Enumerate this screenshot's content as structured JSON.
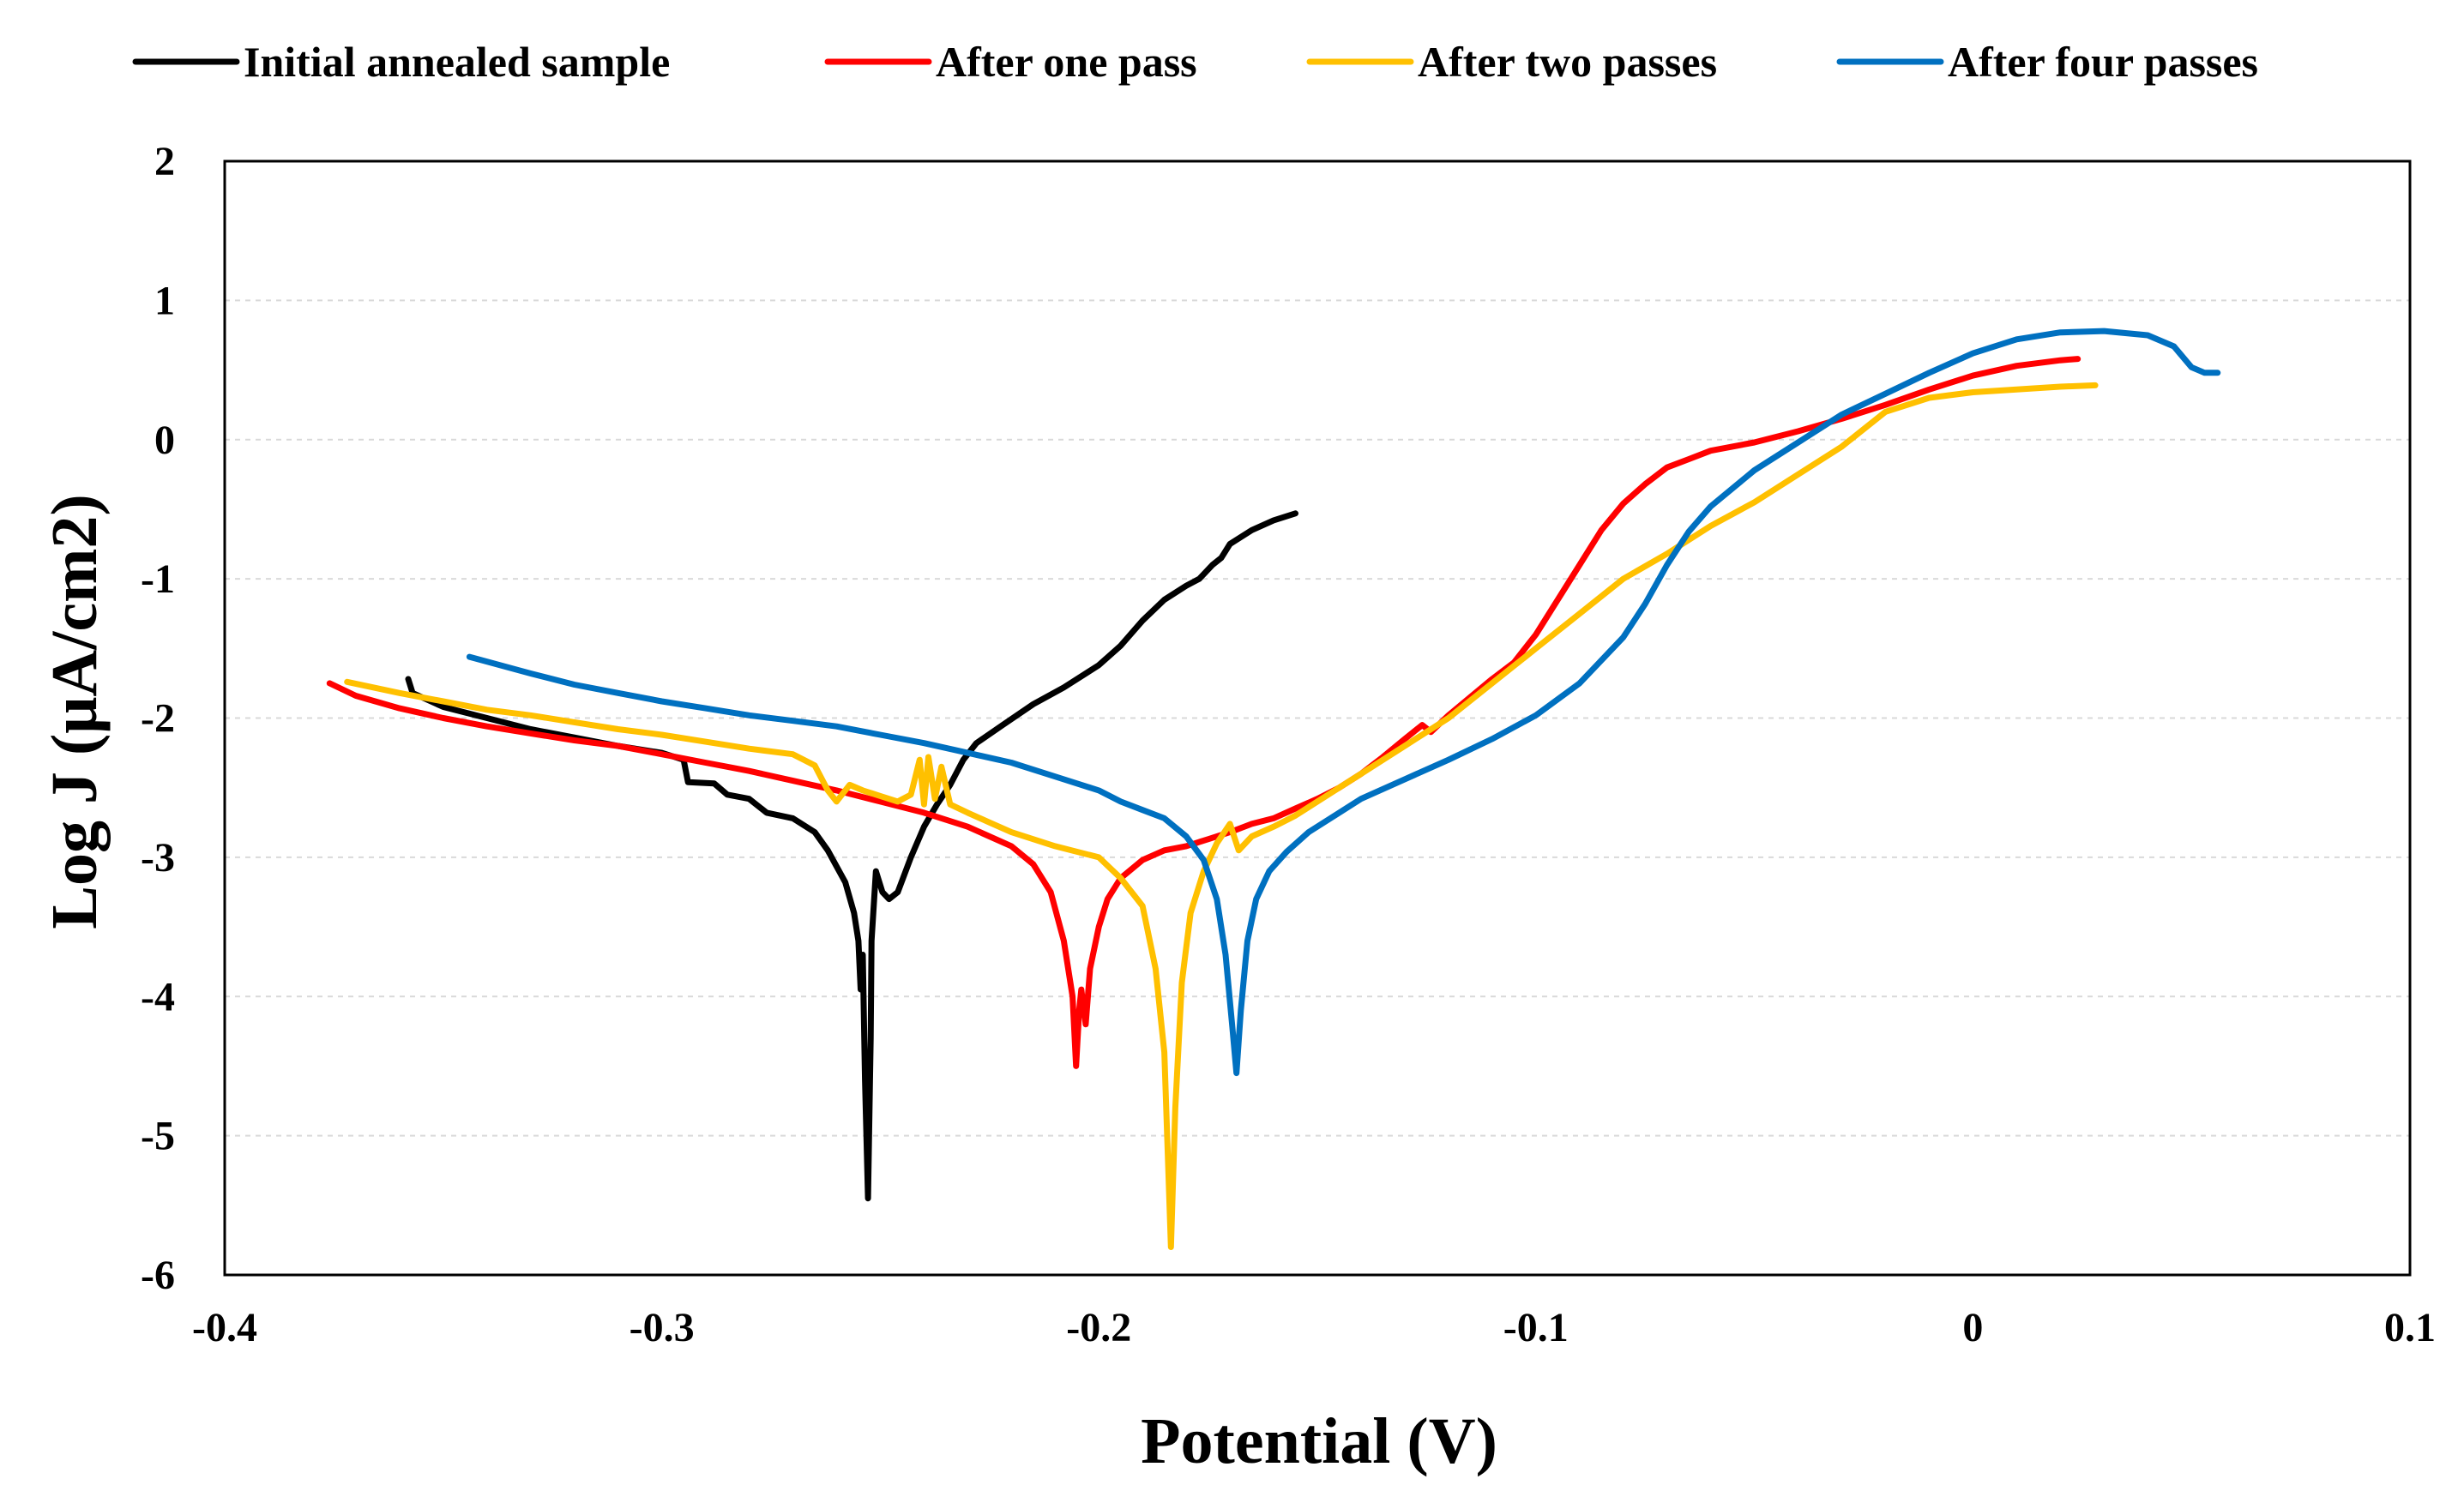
{
  "chart_data": {
    "type": "line",
    "title": "",
    "xlabel": "Potential (V)",
    "ylabel": "Log J (μA/cm2)",
    "xlim": [
      -0.4,
      0.1
    ],
    "ylim": [
      -6,
      2
    ],
    "xticks": [
      {
        "value": -0.4,
        "label": "-0.4"
      },
      {
        "value": -0.3,
        "label": "-0.3"
      },
      {
        "value": -0.2,
        "label": "-0.2"
      },
      {
        "value": -0.1,
        "label": "-0.1"
      },
      {
        "value": 0,
        "label": "0"
      },
      {
        "value": 0.1,
        "label": "0.1"
      }
    ],
    "yticks": [
      {
        "value": 2,
        "label": "2"
      },
      {
        "value": 1,
        "label": "1"
      },
      {
        "value": 0,
        "label": "0"
      },
      {
        "value": -1,
        "label": "-1"
      },
      {
        "value": -2,
        "label": "-2"
      },
      {
        "value": -3,
        "label": "-3"
      },
      {
        "value": -4,
        "label": "-4"
      },
      {
        "value": -5,
        "label": "-5"
      },
      {
        "value": -6,
        "label": "-6"
      }
    ],
    "grid": true,
    "legend_position": "top",
    "series": [
      {
        "name": "Initial annealed sample",
        "color": "#000000",
        "points": [
          [
            -0.358,
            -1.72
          ],
          [
            -0.357,
            -1.82
          ],
          [
            -0.35,
            -1.92
          ],
          [
            -0.34,
            -2.0
          ],
          [
            -0.33,
            -2.08
          ],
          [
            -0.32,
            -2.14
          ],
          [
            -0.31,
            -2.2
          ],
          [
            -0.3,
            -2.25
          ],
          [
            -0.295,
            -2.3
          ],
          [
            -0.294,
            -2.46
          ],
          [
            -0.288,
            -2.47
          ],
          [
            -0.285,
            -2.55
          ],
          [
            -0.28,
            -2.58
          ],
          [
            -0.276,
            -2.68
          ],
          [
            -0.27,
            -2.72
          ],
          [
            -0.265,
            -2.82
          ],
          [
            -0.262,
            -2.95
          ],
          [
            -0.258,
            -3.18
          ],
          [
            -0.256,
            -3.4
          ],
          [
            -0.255,
            -3.6
          ],
          [
            -0.2545,
            -3.95
          ],
          [
            -0.254,
            -3.7
          ],
          [
            -0.2535,
            -4.6
          ],
          [
            -0.2528,
            -5.45
          ],
          [
            -0.2522,
            -4.3
          ],
          [
            -0.252,
            -3.6
          ],
          [
            -0.251,
            -3.1
          ],
          [
            -0.2495,
            -3.25
          ],
          [
            -0.248,
            -3.3
          ],
          [
            -0.246,
            -3.25
          ],
          [
            -0.243,
            -3.0
          ],
          [
            -0.24,
            -2.78
          ],
          [
            -0.237,
            -2.62
          ],
          [
            -0.234,
            -2.48
          ],
          [
            -0.231,
            -2.3
          ],
          [
            -0.228,
            -2.18
          ],
          [
            -0.222,
            -2.05
          ],
          [
            -0.215,
            -1.9
          ],
          [
            -0.208,
            -1.78
          ],
          [
            -0.2,
            -1.62
          ],
          [
            -0.195,
            -1.48
          ],
          [
            -0.19,
            -1.3
          ],
          [
            -0.185,
            -1.15
          ],
          [
            -0.18,
            -1.05
          ],
          [
            -0.177,
            -1.0
          ],
          [
            -0.174,
            -0.9
          ],
          [
            -0.172,
            -0.85
          ],
          [
            -0.17,
            -0.75
          ],
          [
            -0.165,
            -0.65
          ],
          [
            -0.16,
            -0.58
          ],
          [
            -0.155,
            -0.53
          ]
        ]
      },
      {
        "name": "After one pass",
        "color": "#ff0000",
        "points": [
          [
            -0.376,
            -1.75
          ],
          [
            -0.37,
            -1.84
          ],
          [
            -0.36,
            -1.93
          ],
          [
            -0.35,
            -2.0
          ],
          [
            -0.34,
            -2.06
          ],
          [
            -0.33,
            -2.11
          ],
          [
            -0.32,
            -2.16
          ],
          [
            -0.31,
            -2.2
          ],
          [
            -0.3,
            -2.26
          ],
          [
            -0.29,
            -2.32
          ],
          [
            -0.28,
            -2.38
          ],
          [
            -0.27,
            -2.45
          ],
          [
            -0.26,
            -2.52
          ],
          [
            -0.25,
            -2.6
          ],
          [
            -0.24,
            -2.68
          ],
          [
            -0.23,
            -2.78
          ],
          [
            -0.22,
            -2.92
          ],
          [
            -0.215,
            -3.05
          ],
          [
            -0.211,
            -3.25
          ],
          [
            -0.208,
            -3.6
          ],
          [
            -0.206,
            -4.0
          ],
          [
            -0.2052,
            -4.5
          ],
          [
            -0.2045,
            -4.1
          ],
          [
            -0.204,
            -3.95
          ],
          [
            -0.203,
            -4.2
          ],
          [
            -0.202,
            -3.8
          ],
          [
            -0.2,
            -3.5
          ],
          [
            -0.198,
            -3.3
          ],
          [
            -0.195,
            -3.15
          ],
          [
            -0.19,
            -3.02
          ],
          [
            -0.185,
            -2.95
          ],
          [
            -0.18,
            -2.92
          ],
          [
            -0.175,
            -2.87
          ],
          [
            -0.17,
            -2.82
          ],
          [
            -0.165,
            -2.76
          ],
          [
            -0.16,
            -2.72
          ],
          [
            -0.155,
            -2.65
          ],
          [
            -0.15,
            -2.58
          ],
          [
            -0.145,
            -2.5
          ],
          [
            -0.14,
            -2.4
          ],
          [
            -0.135,
            -2.28
          ],
          [
            -0.13,
            -2.15
          ],
          [
            -0.126,
            -2.05
          ],
          [
            -0.124,
            -2.1
          ],
          [
            -0.12,
            -1.98
          ],
          [
            -0.115,
            -1.85
          ],
          [
            -0.11,
            -1.72
          ],
          [
            -0.105,
            -1.6
          ],
          [
            -0.1,
            -1.4
          ],
          [
            -0.095,
            -1.15
          ],
          [
            -0.09,
            -0.9
          ],
          [
            -0.085,
            -0.65
          ],
          [
            -0.08,
            -0.46
          ],
          [
            -0.075,
            -0.32
          ],
          [
            -0.07,
            -0.2
          ],
          [
            -0.065,
            -0.14
          ],
          [
            -0.06,
            -0.08
          ],
          [
            -0.05,
            -0.02
          ],
          [
            -0.04,
            0.06
          ],
          [
            -0.03,
            0.15
          ],
          [
            -0.02,
            0.25
          ],
          [
            -0.01,
            0.36
          ],
          [
            0.0,
            0.46
          ],
          [
            0.01,
            0.53
          ],
          [
            0.02,
            0.57
          ],
          [
            0.024,
            0.58
          ]
        ]
      },
      {
        "name": "After two passes",
        "color": "#ffc000",
        "points": [
          [
            -0.372,
            -1.74
          ],
          [
            -0.36,
            -1.82
          ],
          [
            -0.35,
            -1.88
          ],
          [
            -0.34,
            -1.94
          ],
          [
            -0.33,
            -1.98
          ],
          [
            -0.32,
            -2.03
          ],
          [
            -0.31,
            -2.08
          ],
          [
            -0.3,
            -2.12
          ],
          [
            -0.29,
            -2.17
          ],
          [
            -0.28,
            -2.22
          ],
          [
            -0.27,
            -2.26
          ],
          [
            -0.265,
            -2.34
          ],
          [
            -0.262,
            -2.52
          ],
          [
            -0.26,
            -2.6
          ],
          [
            -0.257,
            -2.48
          ],
          [
            -0.254,
            -2.52
          ],
          [
            -0.25,
            -2.56
          ],
          [
            -0.246,
            -2.6
          ],
          [
            -0.243,
            -2.55
          ],
          [
            -0.241,
            -2.3
          ],
          [
            -0.24,
            -2.62
          ],
          [
            -0.239,
            -2.28
          ],
          [
            -0.2375,
            -2.58
          ],
          [
            -0.236,
            -2.35
          ],
          [
            -0.234,
            -2.62
          ],
          [
            -0.23,
            -2.68
          ],
          [
            -0.225,
            -2.75
          ],
          [
            -0.22,
            -2.82
          ],
          [
            -0.21,
            -2.92
          ],
          [
            -0.2,
            -3.0
          ],
          [
            -0.195,
            -3.15
          ],
          [
            -0.19,
            -3.35
          ],
          [
            -0.187,
            -3.8
          ],
          [
            -0.185,
            -4.4
          ],
          [
            -0.1835,
            -5.8
          ],
          [
            -0.1825,
            -4.8
          ],
          [
            -0.181,
            -3.9
          ],
          [
            -0.179,
            -3.4
          ],
          [
            -0.176,
            -3.1
          ],
          [
            -0.173,
            -2.9
          ],
          [
            -0.17,
            -2.76
          ],
          [
            -0.168,
            -2.95
          ],
          [
            -0.165,
            -2.85
          ],
          [
            -0.16,
            -2.78
          ],
          [
            -0.155,
            -2.7
          ],
          [
            -0.15,
            -2.6
          ],
          [
            -0.145,
            -2.5
          ],
          [
            -0.14,
            -2.4
          ],
          [
            -0.13,
            -2.2
          ],
          [
            -0.12,
            -2.0
          ],
          [
            -0.11,
            -1.75
          ],
          [
            -0.1,
            -1.5
          ],
          [
            -0.09,
            -1.25
          ],
          [
            -0.08,
            -1.0
          ],
          [
            -0.07,
            -0.82
          ],
          [
            -0.06,
            -0.62
          ],
          [
            -0.05,
            -0.45
          ],
          [
            -0.04,
            -0.25
          ],
          [
            -0.03,
            -0.05
          ],
          [
            -0.02,
            0.2
          ],
          [
            -0.01,
            0.3
          ],
          [
            0.0,
            0.34
          ],
          [
            0.01,
            0.36
          ],
          [
            0.02,
            0.38
          ],
          [
            0.028,
            0.39
          ]
        ]
      },
      {
        "name": "After four passes",
        "color": "#0070c0",
        "points": [
          [
            -0.344,
            -1.56
          ],
          [
            -0.33,
            -1.68
          ],
          [
            -0.32,
            -1.76
          ],
          [
            -0.31,
            -1.82
          ],
          [
            -0.3,
            -1.88
          ],
          [
            -0.29,
            -1.93
          ],
          [
            -0.28,
            -1.98
          ],
          [
            -0.27,
            -2.02
          ],
          [
            -0.26,
            -2.06
          ],
          [
            -0.25,
            -2.12
          ],
          [
            -0.24,
            -2.18
          ],
          [
            -0.23,
            -2.25
          ],
          [
            -0.22,
            -2.32
          ],
          [
            -0.21,
            -2.42
          ],
          [
            -0.2,
            -2.52
          ],
          [
            -0.195,
            -2.6
          ],
          [
            -0.19,
            -2.66
          ],
          [
            -0.185,
            -2.72
          ],
          [
            -0.18,
            -2.85
          ],
          [
            -0.176,
            -3.02
          ],
          [
            -0.173,
            -3.3
          ],
          [
            -0.171,
            -3.7
          ],
          [
            -0.1695,
            -4.2
          ],
          [
            -0.1685,
            -4.55
          ],
          [
            -0.1675,
            -4.1
          ],
          [
            -0.166,
            -3.6
          ],
          [
            -0.164,
            -3.3
          ],
          [
            -0.161,
            -3.1
          ],
          [
            -0.157,
            -2.96
          ],
          [
            -0.152,
            -2.82
          ],
          [
            -0.145,
            -2.68
          ],
          [
            -0.14,
            -2.58
          ],
          [
            -0.13,
            -2.44
          ],
          [
            -0.12,
            -2.3
          ],
          [
            -0.11,
            -2.15
          ],
          [
            -0.1,
            -1.98
          ],
          [
            -0.09,
            -1.75
          ],
          [
            -0.08,
            -1.42
          ],
          [
            -0.075,
            -1.18
          ],
          [
            -0.07,
            -0.9
          ],
          [
            -0.065,
            -0.66
          ],
          [
            -0.06,
            -0.48
          ],
          [
            -0.05,
            -0.22
          ],
          [
            -0.04,
            -0.02
          ],
          [
            -0.03,
            0.18
          ],
          [
            -0.02,
            0.33
          ],
          [
            -0.01,
            0.48
          ],
          [
            0.0,
            0.62
          ],
          [
            0.01,
            0.72
          ],
          [
            0.02,
            0.77
          ],
          [
            0.03,
            0.78
          ],
          [
            0.04,
            0.75
          ],
          [
            0.046,
            0.67
          ],
          [
            0.05,
            0.52
          ],
          [
            0.053,
            0.48
          ],
          [
            0.056,
            0.48
          ]
        ]
      }
    ]
  }
}
